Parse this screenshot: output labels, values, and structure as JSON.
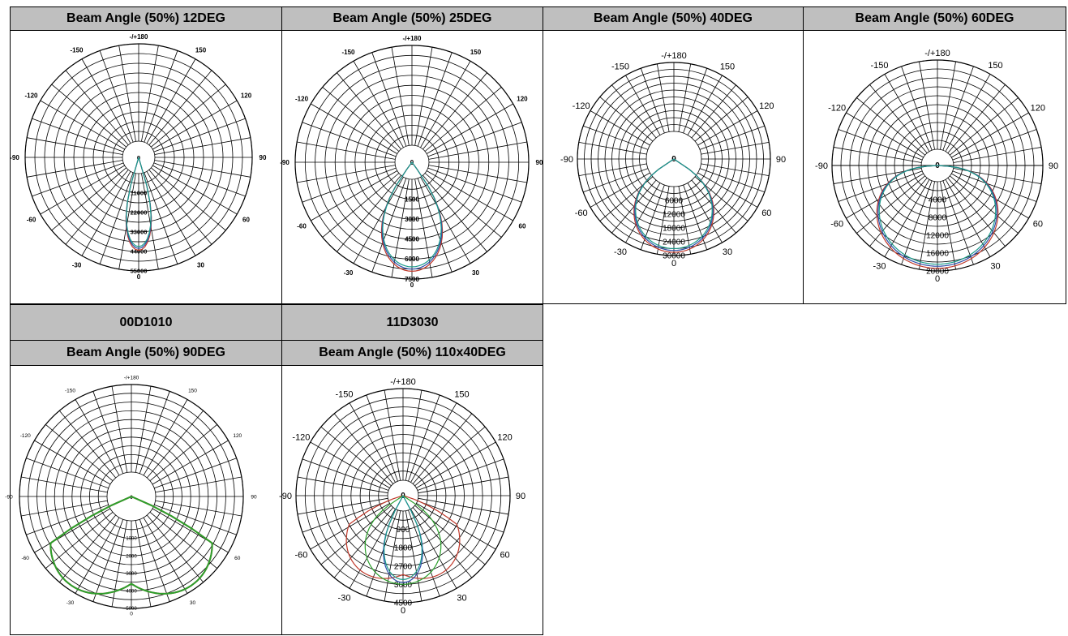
{
  "table": {
    "headers_row1": [
      "Beam Angle (50%) 12DEG",
      "Beam Angle (50%) 25DEG",
      "Beam Angle (50%) 40DEG",
      "Beam Angle (50%) 60DEG"
    ],
    "models_row2": [
      "00D1010",
      "11D3030"
    ],
    "headers_row2": [
      "Beam Angle (50%) 90DEG",
      "Beam Angle (50%) 110x40DEG"
    ]
  },
  "chart_data": [
    {
      "type": "polar",
      "angle_labels": [
        "-/+180",
        "-150",
        "150",
        "-120",
        "120",
        "-90",
        "90",
        "-60",
        "60",
        "-30",
        "30",
        "0"
      ],
      "center_label": "0",
      "radial_ticks": [
        11000,
        22000,
        33000,
        44000,
        55000
      ],
      "rmax": 55000,
      "series": [
        {
          "color": "#c0392b",
          "half_angle_deg": 12,
          "peak": 45000
        },
        {
          "color": "#2c4da8",
          "half_angle_deg": 12,
          "peak": 45000
        },
        {
          "color": "#1a9a8a",
          "half_angle_deg": 12,
          "peak": 45000
        }
      ]
    },
    {
      "type": "polar",
      "angle_labels": [
        "-/+180",
        "-150",
        "150",
        "-120",
        "120",
        "-90",
        "90",
        "-60",
        "60",
        "-30",
        "30",
        "0"
      ],
      "center_label": "0",
      "radial_ticks": [
        1500,
        3000,
        4500,
        6000,
        7500
      ],
      "rmax": 7500,
      "series": [
        {
          "color": "#c0392b",
          "half_angle_deg": 25,
          "peak": 7000
        },
        {
          "color": "#2c4da8",
          "half_angle_deg": 25,
          "peak": 7000
        },
        {
          "color": "#1a9a8a",
          "half_angle_deg": 25,
          "peak": 7000
        }
      ]
    },
    {
      "type": "polar",
      "angle_labels": [
        "-/+180",
        "-150",
        "150",
        "-120",
        "120",
        "-90",
        "90",
        "-60",
        "60",
        "-30",
        "30",
        "0"
      ],
      "center_label": "0",
      "radial_ticks": [
        6000,
        12000,
        18000,
        24000,
        30000
      ],
      "rmax": 30000,
      "series": [
        {
          "color": "#c0392b",
          "half_angle_deg": 40,
          "peak": 29000
        },
        {
          "color": "#2c4da8",
          "half_angle_deg": 40,
          "peak": 29000
        },
        {
          "color": "#1a9a8a",
          "half_angle_deg": 40,
          "peak": 29000
        }
      ]
    },
    {
      "type": "polar",
      "angle_labels": [
        "-/+180",
        "-150",
        "150",
        "-120",
        "120",
        "-90",
        "90",
        "-60",
        "60",
        "-30",
        "30",
        "0"
      ],
      "center_label": "0",
      "radial_ticks": [
        4000,
        8000,
        12000,
        16000,
        20000
      ],
      "rmax": 20000,
      "series": [
        {
          "color": "#c0392b",
          "half_angle_deg": 60,
          "peak": 19500
        },
        {
          "color": "#2c4da8",
          "half_angle_deg": 60,
          "peak": 19500
        },
        {
          "color": "#1a9a8a",
          "half_angle_deg": 60,
          "peak": 19500
        }
      ]
    },
    {
      "type": "polar",
      "angle_labels": [
        "-/+180",
        "-150",
        "150",
        "-120",
        "120",
        "-90",
        "90",
        "-60",
        "60",
        "-30",
        "30",
        "0"
      ],
      "center_label": "0",
      "radial_ticks": [
        1000,
        2000,
        3000,
        4000,
        5000
      ],
      "rmax": 5000,
      "series": [
        {
          "color": "#c0392b",
          "batwing": true,
          "peak": 5000
        },
        {
          "color": "#2ca02c",
          "batwing": true,
          "peak": 5000
        }
      ]
    },
    {
      "type": "polar",
      "angle_labels": [
        "-/+180",
        "-150",
        "150",
        "-120",
        "120",
        "-90",
        "90",
        "-60",
        "60",
        "-30",
        "30",
        "0"
      ],
      "center_label": "0",
      "radial_ticks": [
        900,
        1800,
        2700,
        3600,
        4500
      ],
      "rmax": 4500,
      "series": [
        {
          "color": "#c0392b",
          "half_angle_deg": 55,
          "peak": 3900,
          "batwing": true
        },
        {
          "color": "#2ca02c",
          "half_angle_deg": 40,
          "peak": 3800
        },
        {
          "color": "#2c4da8",
          "half_angle_deg": 20,
          "peak": 3800
        },
        {
          "color": "#1a9a8a",
          "half_angle_deg": 20,
          "peak": 3750
        }
      ]
    }
  ]
}
